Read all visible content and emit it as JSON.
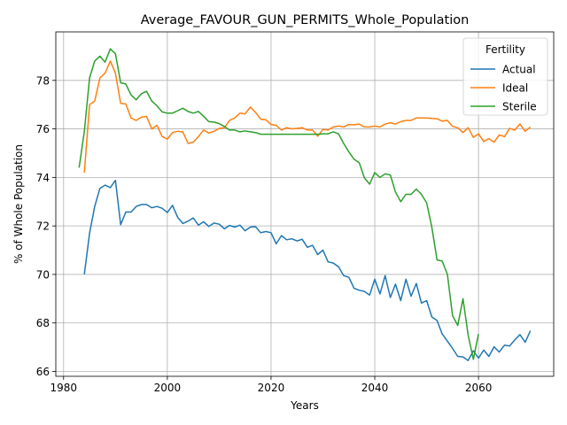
{
  "chart_data": {
    "type": "line",
    "title": "Average_FAVOUR_GUN_PERMITS_Whole_Population",
    "xlabel": "Years",
    "ylabel": "% of Whole Population",
    "xlim": [
      1978.5,
      2074.5
    ],
    "ylim": [
      65.8,
      80.0
    ],
    "xticks": [
      1980,
      2000,
      2020,
      2040,
      2060
    ],
    "yticks": [
      66,
      68,
      70,
      72,
      74,
      76,
      78
    ],
    "grid": true,
    "legend": {
      "title": "Fertility",
      "position": "top-right"
    },
    "series": [
      {
        "name": "Actual",
        "color": "#1f77b4",
        "x": [
          1984,
          1985,
          1986,
          1987,
          1988,
          1989,
          1990,
          1991,
          1992,
          1993,
          1994,
          1995,
          1996,
          1997,
          1998,
          1999,
          2000,
          2001,
          2002,
          2003,
          2004,
          2005,
          2006,
          2007,
          2008,
          2009,
          2010,
          2011,
          2012,
          2013,
          2014,
          2015,
          2016,
          2017,
          2018,
          2019,
          2020,
          2021,
          2022,
          2023,
          2024,
          2025,
          2026,
          2027,
          2028,
          2029,
          2030,
          2031,
          2032,
          2033,
          2034,
          2035,
          2036,
          2037,
          2038,
          2039,
          2040,
          2041,
          2042,
          2043,
          2044,
          2045,
          2046,
          2047,
          2048,
          2049,
          2050,
          2051,
          2052,
          2053,
          2054,
          2055,
          2056,
          2057,
          2058,
          2059,
          2060,
          2061,
          2062,
          2063,
          2064,
          2065,
          2066,
          2067,
          2068,
          2069,
          2070
        ],
        "y": [
          70.0,
          71.7,
          72.8,
          73.55,
          73.68,
          73.58,
          73.88,
          72.05,
          72.57,
          72.57,
          72.8,
          72.88,
          72.88,
          72.75,
          72.8,
          72.73,
          72.55,
          72.85,
          72.35,
          72.1,
          72.2,
          72.33,
          72.03,
          72.17,
          71.98,
          72.12,
          72.07,
          71.88,
          72.02,
          71.95,
          72.03,
          71.8,
          71.95,
          71.97,
          71.72,
          71.77,
          71.72,
          71.26,
          71.6,
          71.43,
          71.47,
          71.38,
          71.45,
          71.12,
          71.2,
          70.82,
          71.0,
          70.52,
          70.47,
          70.32,
          69.95,
          69.88,
          69.43,
          69.35,
          69.3,
          69.15,
          69.8,
          69.2,
          69.95,
          69.05,
          69.6,
          68.92,
          69.8,
          69.1,
          69.63,
          68.82,
          68.92,
          68.25,
          68.1,
          67.55,
          67.25,
          66.95,
          66.62,
          66.6,
          66.45,
          66.85,
          66.55,
          66.88,
          66.62,
          67.02,
          66.8,
          67.08,
          67.05,
          67.3,
          67.52,
          67.2,
          67.68
        ]
      },
      {
        "name": "Ideal",
        "color": "#ff7f0e",
        "x": [
          1984,
          1985,
          1986,
          1987,
          1988,
          1989,
          1990,
          1991,
          1992,
          1993,
          1994,
          1995,
          1996,
          1997,
          1998,
          1999,
          2000,
          2001,
          2002,
          2003,
          2004,
          2005,
          2006,
          2007,
          2008,
          2009,
          2010,
          2011,
          2012,
          2013,
          2014,
          2015,
          2016,
          2017,
          2018,
          2019,
          2020,
          2021,
          2022,
          2023,
          2024,
          2025,
          2026,
          2027,
          2028,
          2029,
          2030,
          2031,
          2032,
          2033,
          2034,
          2035,
          2036,
          2037,
          2038,
          2039,
          2040,
          2041,
          2042,
          2043,
          2044,
          2045,
          2046,
          2047,
          2048,
          2049,
          2050,
          2051,
          2052,
          2053,
          2054,
          2055,
          2056,
          2057,
          2058,
          2059,
          2060,
          2061,
          2062,
          2063,
          2064,
          2065,
          2066,
          2067,
          2068,
          2069,
          2070
        ],
        "y": [
          74.2,
          77.0,
          77.15,
          78.1,
          78.3,
          78.8,
          78.3,
          77.05,
          77.03,
          76.45,
          76.35,
          76.48,
          76.52,
          76.0,
          76.15,
          75.68,
          75.58,
          75.85,
          75.9,
          75.87,
          75.4,
          75.45,
          75.68,
          75.95,
          75.83,
          75.9,
          76.02,
          76.05,
          76.35,
          76.45,
          76.65,
          76.62,
          76.9,
          76.68,
          76.4,
          76.38,
          76.18,
          76.15,
          75.95,
          76.05,
          76.0,
          76.02,
          76.05,
          75.95,
          75.95,
          75.7,
          75.98,
          75.95,
          76.08,
          76.12,
          76.08,
          76.18,
          76.17,
          76.2,
          76.08,
          76.08,
          76.12,
          76.08,
          76.2,
          76.25,
          76.2,
          76.3,
          76.35,
          76.35,
          76.45,
          76.45,
          76.45,
          76.43,
          76.42,
          76.32,
          76.35,
          76.1,
          76.05,
          75.85,
          76.05,
          75.65,
          75.8,
          75.48,
          75.6,
          75.45,
          75.75,
          75.68,
          76.02,
          75.95,
          76.2,
          75.9,
          76.08
        ]
      },
      {
        "name": "Sterile",
        "color": "#2ca02c",
        "x": [
          1983,
          1984,
          1985,
          1986,
          1987,
          1988,
          1989,
          1990,
          1991,
          1992,
          1993,
          1994,
          1995,
          1996,
          1997,
          1998,
          1999,
          2000,
          2001,
          2002,
          2003,
          2004,
          2005,
          2006,
          2007,
          2008,
          2009,
          2010,
          2011,
          2012,
          2013,
          2014,
          2015,
          2016,
          2017,
          2018,
          2019,
          2020,
          2021,
          2022,
          2023,
          2024,
          2025,
          2026,
          2027,
          2028,
          2029,
          2030,
          2031,
          2032,
          2033,
          2034,
          2035,
          2036,
          2037,
          2038,
          2039,
          2040,
          2041,
          2042,
          2043,
          2044,
          2045,
          2046,
          2047,
          2048,
          2049,
          2050,
          2051,
          2052,
          2053,
          2054,
          2055,
          2056,
          2057,
          2058,
          2059,
          2060
        ],
        "y": [
          74.4,
          75.9,
          78.1,
          78.8,
          79.0,
          78.75,
          79.3,
          79.1,
          77.9,
          77.85,
          77.4,
          77.2,
          77.45,
          77.55,
          77.15,
          76.95,
          76.7,
          76.65,
          76.65,
          76.75,
          76.85,
          76.72,
          76.65,
          76.72,
          76.52,
          76.3,
          76.28,
          76.22,
          76.1,
          75.95,
          75.95,
          75.88,
          75.92,
          75.88,
          75.85,
          75.78,
          75.78,
          75.78,
          75.78,
          75.78,
          75.78,
          75.78,
          75.78,
          75.78,
          75.78,
          75.78,
          75.78,
          75.8,
          75.8,
          75.88,
          75.8,
          75.4,
          75.05,
          74.75,
          74.6,
          73.98,
          73.72,
          74.2,
          74.0,
          74.15,
          74.1,
          73.4,
          73.0,
          73.3,
          73.3,
          73.52,
          73.3,
          72.95,
          71.95,
          70.6,
          70.55,
          70.0,
          68.3,
          67.9,
          69.0,
          67.5,
          66.5,
          67.55
        ]
      }
    ]
  }
}
